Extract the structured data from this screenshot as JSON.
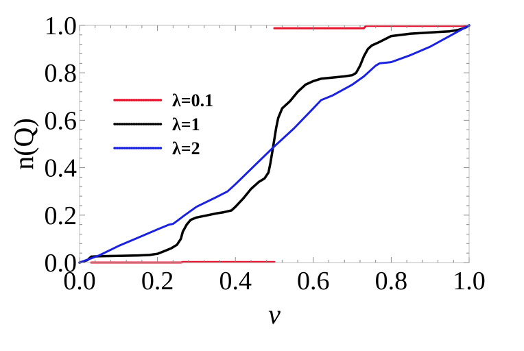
{
  "chart_data": {
    "type": "line",
    "xlabel": "ν",
    "ylabel": "n(Q)",
    "xlim": [
      0.0,
      1.0
    ],
    "ylim": [
      0.0,
      1.0
    ],
    "x_ticks": [
      "0.0",
      "0.2",
      "0.4",
      "0.6",
      "0.8",
      "1.0"
    ],
    "y_ticks": [
      "0.0",
      "0.2",
      "0.4",
      "0.6",
      "0.8",
      "1.0"
    ],
    "grid": false,
    "legend_position": "left, middle",
    "series": [
      {
        "name": "λ=0.1",
        "color": "#e8102a",
        "segments": [
          [
            [
              0.03,
              0.0
            ],
            [
              0.26,
              0.0
            ],
            [
              0.265,
              0.002
            ],
            [
              0.5,
              0.002
            ]
          ],
          [
            [
              0.5,
              0.988
            ],
            [
              0.73,
              0.988
            ],
            [
              0.735,
              0.998
            ],
            [
              1.0,
              0.998
            ]
          ]
        ]
      },
      {
        "name": "λ=1",
        "color": "#000000",
        "points": [
          [
            0.0,
            0.0
          ],
          [
            0.02,
            0.01
          ],
          [
            0.03,
            0.025
          ],
          [
            0.05,
            0.027
          ],
          [
            0.1,
            0.028
          ],
          [
            0.15,
            0.03
          ],
          [
            0.18,
            0.032
          ],
          [
            0.2,
            0.037
          ],
          [
            0.22,
            0.05
          ],
          [
            0.235,
            0.06
          ],
          [
            0.25,
            0.075
          ],
          [
            0.26,
            0.1
          ],
          [
            0.265,
            0.13
          ],
          [
            0.275,
            0.16
          ],
          [
            0.285,
            0.18
          ],
          [
            0.3,
            0.19
          ],
          [
            0.33,
            0.2
          ],
          [
            0.35,
            0.207
          ],
          [
            0.37,
            0.212
          ],
          [
            0.39,
            0.22
          ],
          [
            0.4,
            0.235
          ],
          [
            0.42,
            0.27
          ],
          [
            0.44,
            0.31
          ],
          [
            0.46,
            0.34
          ],
          [
            0.475,
            0.355
          ],
          [
            0.485,
            0.38
          ],
          [
            0.49,
            0.42
          ],
          [
            0.495,
            0.47
          ],
          [
            0.5,
            0.52
          ],
          [
            0.505,
            0.57
          ],
          [
            0.51,
            0.61
          ],
          [
            0.52,
            0.65
          ],
          [
            0.54,
            0.68
          ],
          [
            0.56,
            0.72
          ],
          [
            0.58,
            0.75
          ],
          [
            0.6,
            0.765
          ],
          [
            0.62,
            0.775
          ],
          [
            0.65,
            0.78
          ],
          [
            0.68,
            0.785
          ],
          [
            0.7,
            0.79
          ],
          [
            0.71,
            0.8
          ],
          [
            0.72,
            0.83
          ],
          [
            0.73,
            0.87
          ],
          [
            0.74,
            0.9
          ],
          [
            0.75,
            0.915
          ],
          [
            0.77,
            0.93
          ],
          [
            0.8,
            0.955
          ],
          [
            0.85,
            0.965
          ],
          [
            0.9,
            0.97
          ],
          [
            0.95,
            0.975
          ],
          [
            0.97,
            0.98
          ],
          [
            0.99,
            0.99
          ],
          [
            1.0,
            1.0
          ]
        ]
      },
      {
        "name": "λ=2",
        "color": "#1a22e0",
        "points": [
          [
            0.0,
            0.0
          ],
          [
            0.05,
            0.03
          ],
          [
            0.1,
            0.07
          ],
          [
            0.15,
            0.105
          ],
          [
            0.2,
            0.14
          ],
          [
            0.23,
            0.16
          ],
          [
            0.24,
            0.163
          ],
          [
            0.25,
            0.175
          ],
          [
            0.27,
            0.2
          ],
          [
            0.3,
            0.235
          ],
          [
            0.35,
            0.275
          ],
          [
            0.38,
            0.3
          ],
          [
            0.4,
            0.33
          ],
          [
            0.45,
            0.41
          ],
          [
            0.5,
            0.49
          ],
          [
            0.52,
            0.52
          ],
          [
            0.55,
            0.565
          ],
          [
            0.6,
            0.65
          ],
          [
            0.62,
            0.685
          ],
          [
            0.65,
            0.705
          ],
          [
            0.7,
            0.75
          ],
          [
            0.73,
            0.785
          ],
          [
            0.76,
            0.83
          ],
          [
            0.77,
            0.84
          ],
          [
            0.8,
            0.845
          ],
          [
            0.85,
            0.875
          ],
          [
            0.9,
            0.91
          ],
          [
            0.95,
            0.955
          ],
          [
            1.0,
            1.0
          ]
        ]
      }
    ]
  }
}
